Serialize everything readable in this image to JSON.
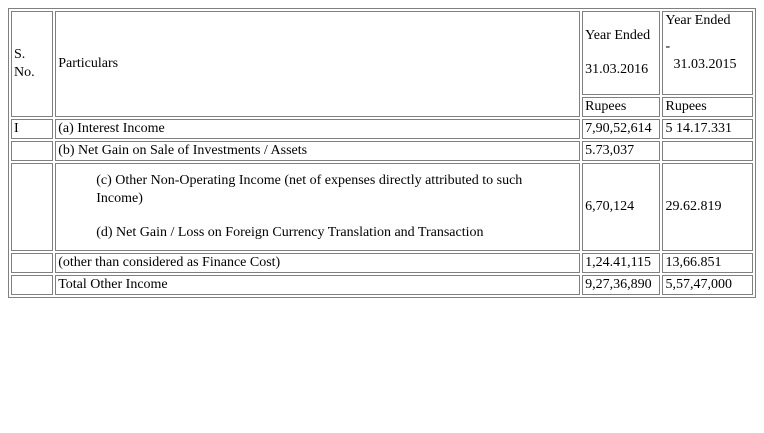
{
  "table": {
    "header": {
      "sno": "S.\nNo.",
      "sno_line1": "S.",
      "sno_line2": "No.",
      "particulars": "Particulars",
      "col1_line1": "Year Ended",
      "col1_line2": "31.03.2016",
      "col2_line1": "Year Ended",
      "col2_line2": "-",
      "col2_line3": "31.03.2015",
      "unit1": "Rupees",
      "unit2": "Rupees"
    },
    "rows": [
      {
        "sno": "I",
        "particulars": "(a) Interest Income",
        "y2016": "7,90,52,614",
        "y2015": "5 14.17.331"
      },
      {
        "sno": "",
        "particulars": "(b) Net Gain on Sale of Investments / Assets",
        "y2016": "5.73,037",
        "y2015": ""
      },
      {
        "sno": "",
        "particulars_c": "(c) Other Non-Operating Income (net of expenses directly attributed to such Income)",
        "particulars_d": "(d) Net Gain / Loss on Foreign Currency Translation and Transaction",
        "y2016": "6,70,124",
        "y2015": "29.62.819"
      },
      {
        "sno": "",
        "particulars": "(other than considered as Finance Cost)",
        "y2016": "1,24.41,115",
        "y2015": "13,66.851"
      },
      {
        "sno": "",
        "particulars": "Total Other Income",
        "y2016": "9,27,36,890",
        "y2015": "5,57,47,000"
      }
    ]
  }
}
